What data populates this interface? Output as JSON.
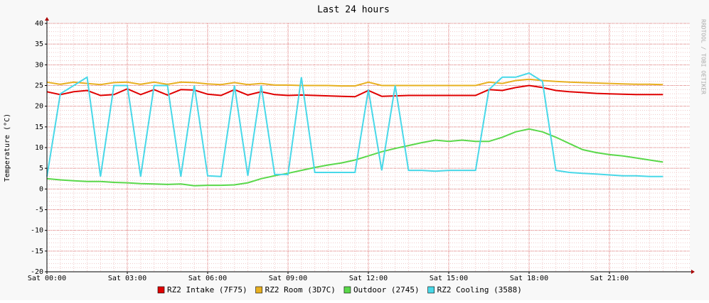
{
  "chart_data": {
    "type": "line",
    "title": "Last 24 hours",
    "y_label": "Temperature (°C)",
    "watermark": "RRDTOOL / TOBI OETIKER",
    "xlim": [
      0,
      24
    ],
    "ylim": [
      -20,
      40
    ],
    "xticks": [
      {
        "value": 0,
        "label": "Sat 00:00"
      },
      {
        "value": 3,
        "label": "Sat 03:00"
      },
      {
        "value": 6,
        "label": "Sat 06:00"
      },
      {
        "value": 9,
        "label": "Sat 09:00"
      },
      {
        "value": 12,
        "label": "Sat 12:00"
      },
      {
        "value": 15,
        "label": "Sat 15:00"
      },
      {
        "value": 18,
        "label": "Sat 18:00"
      },
      {
        "value": 21,
        "label": "Sat 21:00"
      }
    ],
    "yticks": [
      -20,
      -15,
      -10,
      -5,
      0,
      5,
      10,
      15,
      20,
      25,
      30,
      35,
      40
    ],
    "grid": true,
    "x": [
      0,
      0.5,
      1,
      1.5,
      2,
      2.5,
      3,
      3.5,
      4,
      4.5,
      5,
      5.5,
      6,
      6.5,
      7,
      7.5,
      8,
      8.5,
      9,
      9.5,
      10,
      10.5,
      11,
      11.5,
      12,
      12.5,
      13,
      13.5,
      14,
      14.5,
      15,
      15.5,
      16,
      16.5,
      17,
      17.5,
      18,
      18.5,
      19,
      19.5,
      20,
      20.5,
      21,
      21.5,
      22,
      22.5,
      23,
      23.5,
      24
    ],
    "series": [
      {
        "name": "RZ2 Intake (7F75)",
        "color": "#e00000",
        "values": [
          23.5,
          22.8,
          23.5,
          23.8,
          22.6,
          22.8,
          24.2,
          22.8,
          24,
          22.7,
          24,
          23.9,
          22.9,
          22.6,
          24,
          22.7,
          23.5,
          22.8,
          22.6,
          22.7,
          22.6,
          22.5,
          22.4,
          22.3,
          23.8,
          22.4,
          22.5,
          22.6,
          22.6,
          22.6,
          22.6,
          22.6,
          22.6,
          24,
          23.8,
          24.5,
          25,
          24.5,
          23.8,
          23.5,
          23.3,
          23.1,
          23,
          22.9,
          22.8,
          22.8,
          22.8,
          null,
          null
        ]
      },
      {
        "name": "RZ2 Room (3D7C)",
        "color": "#e8b020",
        "values": [
          25.8,
          25.3,
          25.8,
          25.5,
          25.2,
          25.7,
          25.8,
          25.3,
          25.8,
          25.3,
          25.8,
          25.7,
          25.4,
          25.2,
          25.7,
          25.2,
          25.5,
          25.1,
          25.1,
          25,
          25,
          25,
          24.9,
          24.9,
          25.8,
          25,
          25,
          25,
          25,
          25,
          25,
          25,
          25,
          25.8,
          25.5,
          26.2,
          26.5,
          26.2,
          26,
          25.8,
          25.7,
          25.6,
          25.5,
          25.4,
          25.3,
          25.3,
          25.2,
          null,
          null
        ]
      },
      {
        "name": "Outdoor (2745)",
        "color": "#5ad84a",
        "values": [
          2.5,
          2.2,
          2,
          1.8,
          1.8,
          1.6,
          1.5,
          1.3,
          1.2,
          1.1,
          1.2,
          0.8,
          0.9,
          0.9,
          1,
          1.5,
          2.5,
          3.2,
          3.8,
          4.5,
          5.2,
          5.8,
          6.3,
          7,
          8,
          9,
          9.8,
          10.5,
          11.2,
          11.8,
          11.5,
          11.8,
          11.5,
          11.5,
          12.5,
          13.8,
          14.5,
          13.8,
          12.5,
          11,
          9.5,
          8.8,
          8.3,
          8,
          7.5,
          7,
          6.5,
          null,
          null
        ]
      },
      {
        "name": "RZ2 Cooling (3588)",
        "color": "#48d8e8",
        "values": [
          3,
          23,
          25,
          27,
          3,
          25,
          25,
          3,
          25,
          25,
          3,
          25,
          3.2,
          3,
          25,
          3.2,
          25,
          3.5,
          3.5,
          27,
          4,
          4,
          4,
          4,
          24,
          4.5,
          25,
          4.5,
          4.5,
          4.3,
          4.5,
          4.5,
          4.5,
          24,
          27,
          27,
          28,
          26,
          4.5,
          4,
          3.8,
          3.6,
          3.4,
          3.2,
          3.2,
          3,
          3,
          null,
          null
        ]
      }
    ]
  }
}
